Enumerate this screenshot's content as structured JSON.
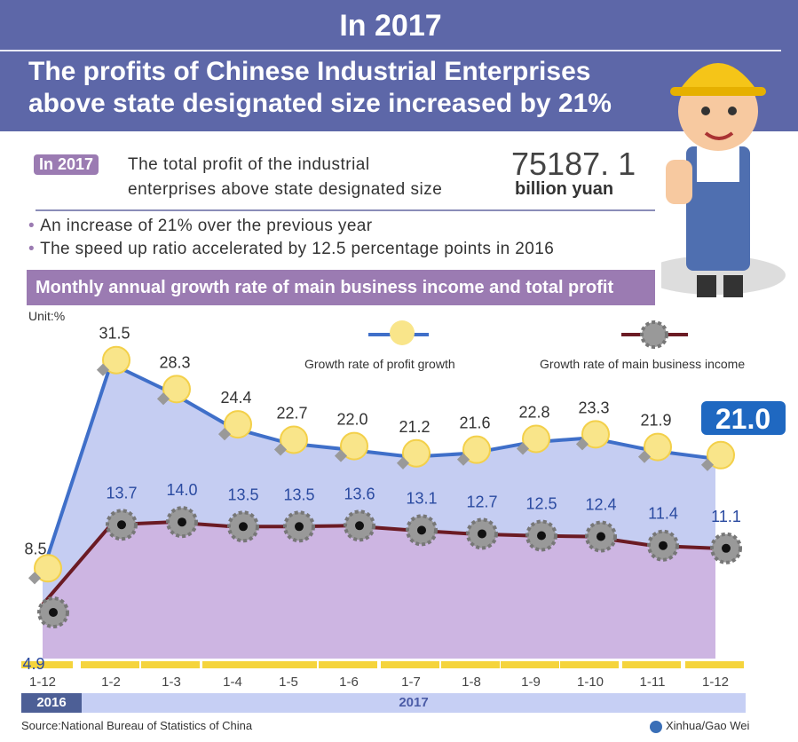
{
  "header": {
    "year": "In 2017",
    "title_line1": "The profits of Chinese Industrial Enterprises",
    "title_line2": "above state designated size increased by 21%"
  },
  "summary": {
    "tag": "In 2017",
    "desc_line1": "The total profit of the industrial",
    "desc_line2": "enterprises above state designated size",
    "value": "75187. 1",
    "unit": "billion yuan",
    "bullets": [
      "An increase of 21% over the previous year",
      "The speed up ratio accelerated by 12.5 percentage points in 2016"
    ]
  },
  "subtitle": "Monthly annual growth rate of main business income and total profit",
  "footer": {
    "source": "Source:National Bureau of Statistics of China",
    "credit": "Xinhua/Gao Wei"
  },
  "colors": {
    "header": "#5d67a8",
    "profit_line": "#3f6fc9",
    "profit_fill": "#c5cdf2",
    "income_line": "#6b1b24",
    "income_fill": "#cdb5e2",
    "axis_bar": "#f5d43c"
  },
  "chart_data": {
    "type": "line",
    "unit": "Unit:%",
    "categories": [
      "1-12",
      "1-2",
      "1-3",
      "1-4",
      "1-5",
      "1-6",
      "1-7",
      "1-8",
      "1-9",
      "1-10",
      "1-11",
      "1-12"
    ],
    "year_groups": [
      {
        "label": "2016",
        "span": 1
      },
      {
        "label": "2017",
        "span": 11
      }
    ],
    "series": [
      {
        "name": "Growth rate of profit growth",
        "values": [
          8.5,
          31.5,
          28.3,
          24.4,
          22.7,
          22.0,
          21.2,
          21.6,
          22.8,
          23.3,
          21.9,
          21.0
        ],
        "marker": "lightbulb-icon"
      },
      {
        "name": "Growth rate of main business income",
        "values": [
          4.9,
          13.7,
          14.0,
          13.5,
          13.5,
          13.6,
          13.1,
          12.7,
          12.5,
          12.4,
          11.4,
          11.1
        ],
        "marker": "gear-icon"
      }
    ]
  }
}
